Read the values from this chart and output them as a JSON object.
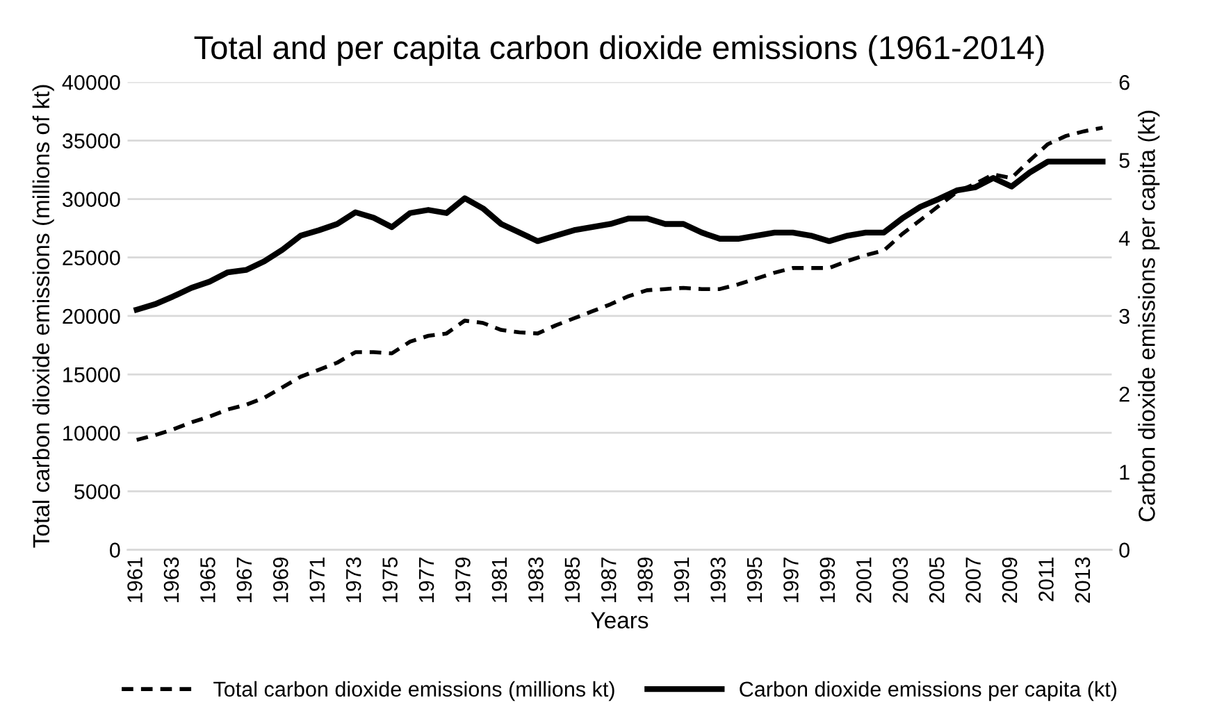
{
  "chart_data": {
    "type": "line",
    "title": "Total and per capita carbon dioxide emissions (1961-2014)",
    "xlabel": "Years",
    "ylabel": "Total carbon dioxide emissions (millions of kt)",
    "y2label": "Carbon dioxide emissions per capita (kt)",
    "categories": [
      "1961",
      null,
      "1963",
      null,
      "1965",
      null,
      "1967",
      null,
      "1969",
      null,
      "1971",
      null,
      "1973",
      null,
      "1975",
      null,
      "1977",
      null,
      "1979",
      null,
      "1981",
      null,
      "1983",
      null,
      "1985",
      null,
      "1987",
      null,
      "1989",
      null,
      "1991",
      null,
      "1993",
      null,
      "1995",
      null,
      "1997",
      null,
      "1999",
      null,
      "2001",
      null,
      "2003",
      null,
      "2005",
      null,
      "2007",
      null,
      "2009",
      null,
      "2011",
      null,
      "2013",
      null
    ],
    "series": [
      {
        "name": "Total carbon dioxide emissions (millions kt)",
        "color": "#000000",
        "line_style": "dashed",
        "values": [
          9400,
          9800,
          10300,
          10900,
          11400,
          12000,
          12400,
          13000,
          13900,
          14800,
          15400,
          16000,
          16900,
          16900,
          16800,
          17800,
          18300,
          18500,
          19600,
          19400,
          18800,
          18600,
          18500,
          19200,
          19800,
          20400,
          21000,
          21700,
          22200,
          22300,
          22400,
          22300,
          22300,
          22700,
          23200,
          23700,
          24100,
          24100,
          24100,
          24700,
          25200,
          25600,
          27000,
          28200,
          29400,
          30600,
          31300,
          32100,
          31800,
          33300,
          34700,
          35400,
          35800,
          36100
        ]
      },
      {
        "name": "Carbon dioxide emissions per capita (kt)",
        "color": "#000000",
        "line_style": "solid",
        "axis": "y2",
        "values": [
          3.08,
          3.15,
          3.25,
          3.36,
          3.44,
          3.56,
          3.59,
          3.7,
          3.85,
          4.03,
          4.1,
          4.18,
          4.33,
          4.26,
          4.14,
          4.32,
          4.36,
          4.32,
          4.51,
          4.38,
          4.18,
          4.07,
          3.96,
          4.03,
          4.1,
          4.14,
          4.18,
          4.25,
          4.25,
          4.18,
          4.18,
          4.07,
          3.99,
          3.99,
          4.03,
          4.07,
          4.07,
          4.03,
          3.96,
          4.03,
          4.07,
          4.07,
          4.25,
          4.4,
          4.5,
          4.61,
          4.65,
          4.77,
          4.66,
          4.84,
          4.98,
          4.98,
          4.98,
          4.98
        ]
      }
    ],
    "ylim": [
      0,
      40000
    ],
    "yticks": [
      0,
      5000,
      10000,
      15000,
      20000,
      25000,
      30000,
      35000,
      40000
    ],
    "y2lim": [
      0,
      6
    ],
    "y2ticks": [
      0,
      1,
      2,
      3,
      4,
      5,
      6
    ],
    "grid": "y",
    "legend": "bottom"
  }
}
